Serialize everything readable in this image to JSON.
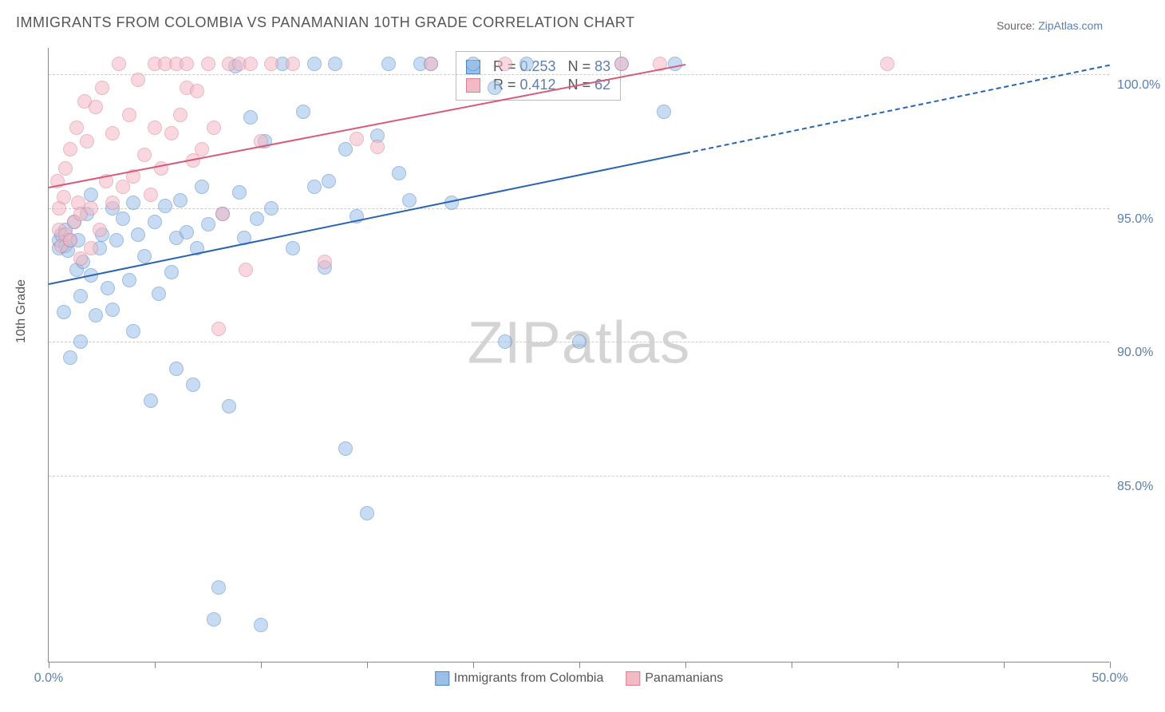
{
  "title": "IMMIGRANTS FROM COLOMBIA VS PANAMANIAN 10TH GRADE CORRELATION CHART",
  "source_label": "Source: ",
  "source_name": "ZipAtlas.com",
  "watermark_zip": "ZIP",
  "watermark_atlas": "atlas",
  "chart": {
    "type": "scatter",
    "ylabel": "10th Grade",
    "xlim": [
      0,
      50
    ],
    "ylim": [
      78,
      101
    ],
    "xtick_positions": [
      0,
      5,
      10,
      15,
      20,
      25,
      30,
      35,
      40,
      45,
      50
    ],
    "xtick_labels": {
      "0": "0.0%",
      "50": "50.0%"
    },
    "ytick_positions": [
      85,
      90,
      95,
      100
    ],
    "ytick_labels": [
      "85.0%",
      "90.0%",
      "95.0%",
      "100.0%"
    ],
    "grid_color": "#cccccc",
    "background_color": "#ffffff",
    "marker_radius": 9,
    "marker_opacity": 0.55,
    "series": [
      {
        "name": "Immigrants from Colombia",
        "color_fill": "#9bc0e8",
        "color_stroke": "#4f86c6",
        "R": "0.253",
        "N": "83",
        "regression": {
          "x1": 0,
          "y1": 92.2,
          "x2": 30,
          "y2": 97.1,
          "dash_x2": 50,
          "dash_y2": 100.4,
          "color": "#2a63b0"
        },
        "points": [
          [
            0.5,
            93.5
          ],
          [
            0.5,
            93.8
          ],
          [
            0.6,
            94.0
          ],
          [
            0.7,
            91.1
          ],
          [
            0.8,
            93.6
          ],
          [
            0.8,
            94.2
          ],
          [
            0.9,
            93.4
          ],
          [
            1.0,
            89.4
          ],
          [
            1.0,
            93.8
          ],
          [
            1.2,
            94.5
          ],
          [
            1.3,
            92.7
          ],
          [
            1.4,
            93.8
          ],
          [
            1.5,
            91.7
          ],
          [
            1.5,
            90.0
          ],
          [
            1.6,
            93.0
          ],
          [
            1.8,
            94.8
          ],
          [
            2.0,
            95.5
          ],
          [
            2.0,
            92.5
          ],
          [
            2.2,
            91.0
          ],
          [
            2.4,
            93.5
          ],
          [
            2.5,
            94.0
          ],
          [
            2.8,
            92.0
          ],
          [
            3.0,
            91.2
          ],
          [
            3.0,
            95.0
          ],
          [
            3.2,
            93.8
          ],
          [
            3.5,
            94.6
          ],
          [
            3.8,
            92.3
          ],
          [
            4.0,
            95.2
          ],
          [
            4.0,
            90.4
          ],
          [
            4.2,
            94.0
          ],
          [
            4.5,
            93.2
          ],
          [
            4.8,
            87.8
          ],
          [
            5.0,
            94.5
          ],
          [
            5.2,
            91.8
          ],
          [
            5.5,
            95.1
          ],
          [
            5.8,
            92.6
          ],
          [
            6.0,
            93.9
          ],
          [
            6.0,
            89.0
          ],
          [
            6.2,
            95.3
          ],
          [
            6.5,
            94.1
          ],
          [
            6.8,
            88.4
          ],
          [
            7.0,
            93.5
          ],
          [
            7.2,
            95.8
          ],
          [
            7.5,
            94.4
          ],
          [
            7.8,
            79.6
          ],
          [
            8.0,
            80.8
          ],
          [
            8.2,
            94.8
          ],
          [
            8.5,
            87.6
          ],
          [
            8.8,
            100.3
          ],
          [
            9.0,
            95.6
          ],
          [
            9.2,
            93.9
          ],
          [
            9.5,
            98.4
          ],
          [
            9.8,
            94.6
          ],
          [
            10.0,
            79.4
          ],
          [
            10.2,
            97.5
          ],
          [
            10.5,
            95.0
          ],
          [
            11.0,
            100.4
          ],
          [
            11.5,
            93.5
          ],
          [
            12.0,
            98.6
          ],
          [
            12.5,
            95.8
          ],
          [
            12.5,
            100.4
          ],
          [
            13.0,
            92.8
          ],
          [
            13.2,
            96.0
          ],
          [
            13.5,
            100.4
          ],
          [
            14.0,
            97.2
          ],
          [
            14.0,
            86.0
          ],
          [
            14.5,
            94.7
          ],
          [
            15.0,
            83.6
          ],
          [
            15.5,
            97.7
          ],
          [
            16.0,
            100.4
          ],
          [
            16.5,
            96.3
          ],
          [
            17.0,
            95.3
          ],
          [
            17.5,
            100.4
          ],
          [
            18.0,
            100.4
          ],
          [
            19.0,
            95.2
          ],
          [
            20.0,
            100.4
          ],
          [
            21.0,
            99.5
          ],
          [
            21.5,
            90.0
          ],
          [
            22.5,
            100.4
          ],
          [
            25.0,
            90.0
          ],
          [
            27.0,
            100.4
          ],
          [
            29.0,
            98.6
          ],
          [
            29.5,
            100.4
          ]
        ]
      },
      {
        "name": "Panamanians",
        "color_fill": "#f3b9c4",
        "color_stroke": "#de7e95",
        "R": "0.412",
        "N": "62",
        "regression": {
          "x1": 0,
          "y1": 95.8,
          "x2": 30,
          "y2": 100.4,
          "color": "#d85a78"
        },
        "points": [
          [
            0.4,
            96.0
          ],
          [
            0.5,
            94.2
          ],
          [
            0.5,
            95.0
          ],
          [
            0.6,
            93.6
          ],
          [
            0.7,
            95.4
          ],
          [
            0.8,
            94.0
          ],
          [
            0.8,
            96.5
          ],
          [
            1.0,
            97.2
          ],
          [
            1.0,
            93.8
          ],
          [
            1.2,
            94.5
          ],
          [
            1.3,
            98.0
          ],
          [
            1.4,
            95.2
          ],
          [
            1.5,
            93.1
          ],
          [
            1.5,
            94.8
          ],
          [
            1.7,
            99.0
          ],
          [
            1.8,
            97.5
          ],
          [
            2.0,
            95.0
          ],
          [
            2.0,
            93.5
          ],
          [
            2.2,
            98.8
          ],
          [
            2.4,
            94.2
          ],
          [
            2.5,
            99.5
          ],
          [
            2.7,
            96.0
          ],
          [
            3.0,
            97.8
          ],
          [
            3.0,
            95.2
          ],
          [
            3.3,
            100.4
          ],
          [
            3.5,
            95.8
          ],
          [
            3.8,
            98.5
          ],
          [
            4.0,
            96.2
          ],
          [
            4.2,
            99.8
          ],
          [
            4.5,
            97.0
          ],
          [
            4.8,
            95.5
          ],
          [
            5.0,
            100.4
          ],
          [
            5.0,
            98.0
          ],
          [
            5.3,
            96.5
          ],
          [
            5.5,
            100.4
          ],
          [
            5.8,
            97.8
          ],
          [
            6.0,
            100.4
          ],
          [
            6.2,
            98.5
          ],
          [
            6.5,
            100.4
          ],
          [
            6.5,
            99.5
          ],
          [
            6.8,
            96.8
          ],
          [
            7.0,
            99.4
          ],
          [
            7.2,
            97.2
          ],
          [
            7.5,
            100.4
          ],
          [
            7.8,
            98.0
          ],
          [
            8.0,
            90.5
          ],
          [
            8.2,
            94.8
          ],
          [
            8.5,
            100.4
          ],
          [
            9.0,
            100.4
          ],
          [
            9.3,
            92.7
          ],
          [
            9.5,
            100.4
          ],
          [
            10.0,
            97.5
          ],
          [
            10.5,
            100.4
          ],
          [
            11.5,
            100.4
          ],
          [
            13.0,
            93.0
          ],
          [
            14.5,
            97.6
          ],
          [
            15.5,
            97.3
          ],
          [
            18.0,
            100.4
          ],
          [
            21.5,
            100.4
          ],
          [
            27.0,
            100.4
          ],
          [
            28.8,
            100.4
          ],
          [
            39.5,
            100.4
          ]
        ]
      }
    ],
    "stats_labels": {
      "R_prefix": "R = ",
      "N_prefix": "N = "
    },
    "bottom_legend": [
      {
        "label": "Immigrants from Colombia",
        "fill": "#9bc0e8",
        "stroke": "#4f86c6"
      },
      {
        "label": "Panamanians",
        "fill": "#f3b9c4",
        "stroke": "#de7e95"
      }
    ]
  }
}
